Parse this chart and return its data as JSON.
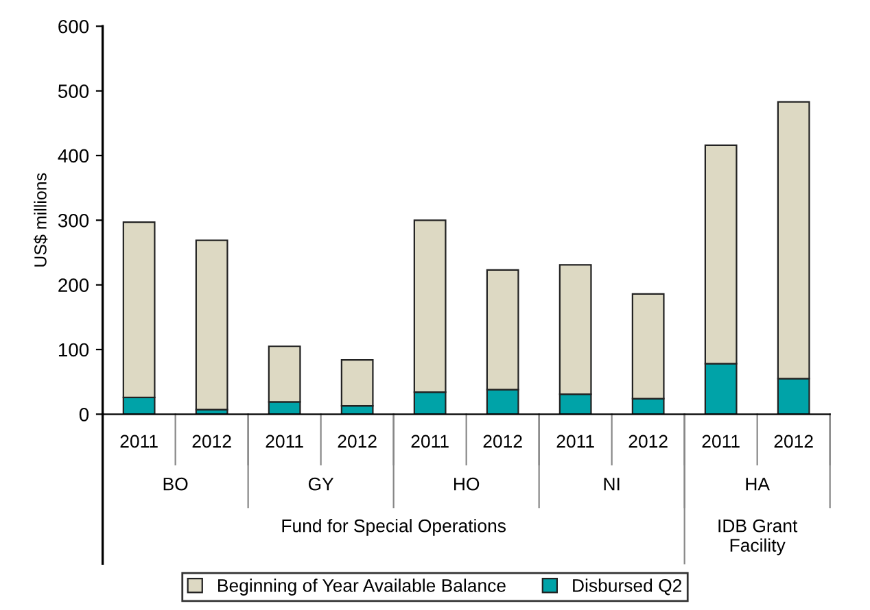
{
  "chart_data": {
    "type": "bar",
    "stacked": true,
    "ylabel": "US$ millions",
    "categories": [
      "2011",
      "2012",
      "2011",
      "2012",
      "2011",
      "2012",
      "2011",
      "2012",
      "2011",
      "2012"
    ],
    "series": [
      {
        "name": "Disbursed Q2",
        "color": "#00a3a8",
        "values": [
          26,
          7,
          19,
          13,
          34,
          38,
          31,
          24,
          78,
          55
        ]
      },
      {
        "name": "Beginning of Year Available Balance",
        "color": "#ddd9c3",
        "values": [
          271,
          262,
          86,
          71,
          266,
          185,
          200,
          162,
          338,
          428
        ]
      }
    ],
    "ylim": [
      0,
      600
    ],
    "yticks": [
      0,
      100,
      200,
      300,
      400,
      500,
      600
    ],
    "annotations": [
      "BO",
      "GY",
      "HO",
      "NI",
      "HA",
      "Fund for Special Operations",
      "IDB Grant\nFacility"
    ],
    "legend": "bottom",
    "grid": false
  }
}
